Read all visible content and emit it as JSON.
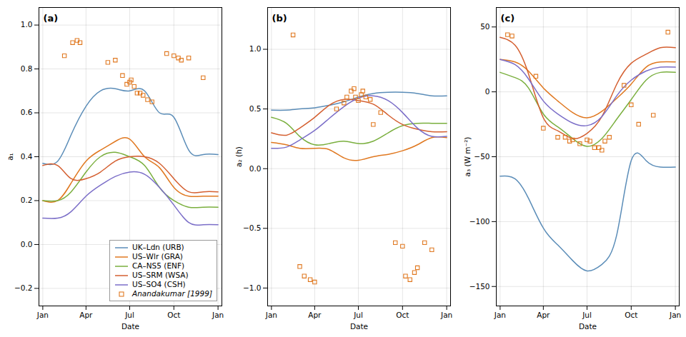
{
  "chart_data": [
    {
      "type": "line",
      "title": "(a)",
      "xlabel": "Date",
      "ylabel": "a₁",
      "x": [
        0,
        31,
        59,
        90,
        120,
        151,
        181,
        212,
        243,
        273,
        304,
        334,
        365
      ],
      "xlim": [
        -8,
        373
      ],
      "xticks": [
        {
          "value": 0,
          "label": "Jan"
        },
        {
          "value": 90,
          "label": "Apr"
        },
        {
          "value": 181,
          "label": "Jul"
        },
        {
          "value": 273,
          "label": "Oct"
        },
        {
          "value": 365,
          "label": "Jan"
        }
      ],
      "ylim": [
        -0.28,
        1.08
      ],
      "yticks": [
        -0.2,
        {
          "value": 0.0,
          "label": "0.0"
        },
        0.2,
        0.4,
        0.6,
        0.8,
        {
          "value": 1.0,
          "label": "1.0"
        }
      ],
      "grid": true,
      "legend": "lower right",
      "series": [
        {
          "name": "UK–Ldn (URB)",
          "color": "#5B8DB8",
          "values": [
            0.37,
            0.38,
            0.5,
            0.63,
            0.7,
            0.71,
            0.7,
            0.7,
            0.6,
            0.58,
            0.43,
            0.41,
            0.41
          ]
        },
        {
          "name": "US–Wlr (GRA)",
          "color": "#E07820",
          "values": [
            0.2,
            0.2,
            0.28,
            0.38,
            0.43,
            0.47,
            0.48,
            0.4,
            0.35,
            0.26,
            0.22,
            0.22,
            0.22
          ]
        },
        {
          "name": "CA–NS5 (ENF)",
          "color": "#7AAF3E",
          "values": [
            0.2,
            0.2,
            0.24,
            0.33,
            0.4,
            0.42,
            0.4,
            0.36,
            0.26,
            0.2,
            0.17,
            0.17,
            0.17
          ]
        },
        {
          "name": "US–SRM (WSA)",
          "color": "#D45F30",
          "values": [
            0.36,
            0.36,
            0.3,
            0.3,
            0.33,
            0.38,
            0.4,
            0.4,
            0.37,
            0.3,
            0.24,
            0.24,
            0.24
          ]
        },
        {
          "name": "US–SO4 (CSH)",
          "color": "#7B6EC8",
          "values": [
            0.12,
            0.12,
            0.15,
            0.22,
            0.27,
            0.31,
            0.33,
            0.32,
            0.26,
            0.18,
            0.1,
            0.09,
            0.09
          ]
        },
        {
          "name": "Anandakumar [1999]",
          "type": "scatter",
          "marker": "square",
          "color": "#E07820",
          "x": [
            45,
            62.1,
            71.4,
            77.6,
            135.5,
            151,
            166,
            175,
            181,
            184.1,
            190.3,
            196.5,
            202.7,
            208.9,
            218.2,
            227.5,
            258,
            273,
            282.3,
            288.5,
            304,
            334
          ],
          "values": [
            0.86,
            0.92,
            0.93,
            0.92,
            0.83,
            0.84,
            0.77,
            0.73,
            0.74,
            0.75,
            0.72,
            0.69,
            0.69,
            0.68,
            0.66,
            0.65,
            0.87,
            0.86,
            0.85,
            0.84,
            0.85,
            0.76
          ]
        }
      ]
    },
    {
      "type": "line",
      "title": "(b)",
      "xlabel": "Date",
      "ylabel": "a₂ (h)",
      "x": [
        0,
        31,
        59,
        90,
        120,
        151,
        181,
        212,
        243,
        273,
        304,
        334,
        365
      ],
      "xlim": [
        -8,
        373
      ],
      "xticks": [
        {
          "value": 0,
          "label": "Jan"
        },
        {
          "value": 90,
          "label": "Apr"
        },
        {
          "value": 181,
          "label": "Jul"
        },
        {
          "value": 273,
          "label": "Oct"
        },
        {
          "value": 365,
          "label": "Jan"
        }
      ],
      "ylim": [
        -1.15,
        1.35
      ],
      "yticks": [
        {
          "value": -1.0,
          "label": "−1.0"
        },
        -0.5,
        {
          "value": 0.0,
          "label": "0.0"
        },
        0.5,
        {
          "value": 1.0,
          "label": "1.0"
        }
      ],
      "grid": true,
      "series": [
        {
          "name": "UK–Ldn (URB)",
          "color": "#5B8DB8",
          "values": [
            0.49,
            0.49,
            0.5,
            0.51,
            0.53,
            0.56,
            0.6,
            0.63,
            0.64,
            0.64,
            0.63,
            0.61,
            0.61
          ]
        },
        {
          "name": "US–Wlr (GRA)",
          "color": "#E07820",
          "values": [
            0.22,
            0.2,
            0.17,
            0.17,
            0.16,
            0.09,
            0.07,
            0.1,
            0.12,
            0.15,
            0.2,
            0.26,
            0.26
          ]
        },
        {
          "name": "CA–NS5 (ENF)",
          "color": "#7AAF3E",
          "values": [
            0.43,
            0.38,
            0.27,
            0.2,
            0.21,
            0.23,
            0.21,
            0.23,
            0.3,
            0.36,
            0.38,
            0.38,
            0.38
          ]
        },
        {
          "name": "US–SRM (WSA)",
          "color": "#D45F30",
          "values": [
            0.3,
            0.28,
            0.34,
            0.43,
            0.53,
            0.58,
            0.57,
            0.54,
            0.45,
            0.37,
            0.33,
            0.31,
            0.31
          ]
        },
        {
          "name": "US–SO4 (CSH)",
          "color": "#7B6EC8",
          "values": [
            0.17,
            0.18,
            0.24,
            0.32,
            0.42,
            0.52,
            0.59,
            0.61,
            0.57,
            0.47,
            0.34,
            0.27,
            0.27
          ]
        },
        {
          "name": "Anandakumar [1999]",
          "type": "scatter",
          "marker": "square",
          "color": "#E07820",
          "x": [
            59,
            68.3,
            80.7,
            90,
            135.5,
            151,
            157,
            166,
            172,
            175,
            181,
            187.2,
            190.3,
            196.5,
            205.8,
            212,
            227.5,
            258,
            273,
            319,
            334,
            45,
            279.2,
            288.5,
            297.8,
            304
          ],
          "values": [
            -0.82,
            -0.9,
            -0.93,
            -0.95,
            0.5,
            0.55,
            0.6,
            0.65,
            0.67,
            0.6,
            0.57,
            0.62,
            0.65,
            0.6,
            0.58,
            0.37,
            0.47,
            -0.62,
            -0.65,
            -0.62,
            -0.68,
            1.12,
            -0.9,
            -0.93,
            -0.87,
            -0.83
          ]
        }
      ]
    },
    {
      "type": "line",
      "title": "(c)",
      "xlabel": "Date",
      "ylabel": "a₃ (W m⁻²)",
      "x": [
        0,
        31,
        59,
        90,
        120,
        151,
        181,
        212,
        243,
        273,
        304,
        334,
        365
      ],
      "xlim": [
        -8,
        373
      ],
      "xticks": [
        {
          "value": 0,
          "label": "Jan"
        },
        {
          "value": 90,
          "label": "Apr"
        },
        {
          "value": 181,
          "label": "Jul"
        },
        {
          "value": 273,
          "label": "Oct"
        },
        {
          "value": 365,
          "label": "Jan"
        }
      ],
      "ylim": [
        -165,
        65
      ],
      "yticks": [
        -150,
        -100,
        -50,
        0,
        50
      ],
      "grid": true,
      "series": [
        {
          "name": "UK–Ldn (URB)",
          "color": "#5B8DB8",
          "values": [
            -65,
            -67,
            -82,
            -105,
            -118,
            -130,
            -138,
            -133,
            -110,
            -53,
            -53,
            -58,
            -58
          ]
        },
        {
          "name": "US–Wlr (GRA)",
          "color": "#E07820",
          "values": [
            25,
            23,
            16,
            3,
            -7,
            -16,
            -20,
            -15,
            -5,
            6,
            19,
            23,
            23
          ]
        },
        {
          "name": "CA–NS5 (ENF)",
          "color": "#7AAF3E",
          "values": [
            15,
            11,
            3,
            -17,
            -27,
            -36,
            -42,
            -36,
            -21,
            -6,
            9,
            15,
            15
          ]
        },
        {
          "name": "US–SRM (WSA)",
          "color": "#D45F30",
          "values": [
            42,
            36,
            14,
            -20,
            -30,
            -36,
            -32,
            -19,
            6,
            22,
            29,
            34,
            34
          ]
        },
        {
          "name": "US–SO4 (CSH)",
          "color": "#7B6EC8",
          "values": [
            25,
            21,
            10,
            -7,
            -17,
            -24,
            -26,
            -19,
            -3,
            9,
            16,
            19,
            19
          ]
        },
        {
          "name": "Anandakumar [1999]",
          "type": "scatter",
          "marker": "square",
          "color": "#E07820",
          "x": [
            15.5,
            24.8,
            74.5,
            90,
            120,
            135.5,
            144.8,
            151,
            166,
            181,
            187.2,
            196.5,
            205.8,
            212,
            218.2,
            227.5,
            258,
            273,
            288.5,
            319,
            349.5
          ],
          "values": [
            44,
            43,
            12,
            -28,
            -35,
            -35,
            -38,
            -37,
            -40,
            -37,
            -38,
            -43,
            -43,
            -45,
            -38,
            -35,
            5,
            -10,
            -25,
            -18,
            46
          ]
        }
      ]
    }
  ]
}
